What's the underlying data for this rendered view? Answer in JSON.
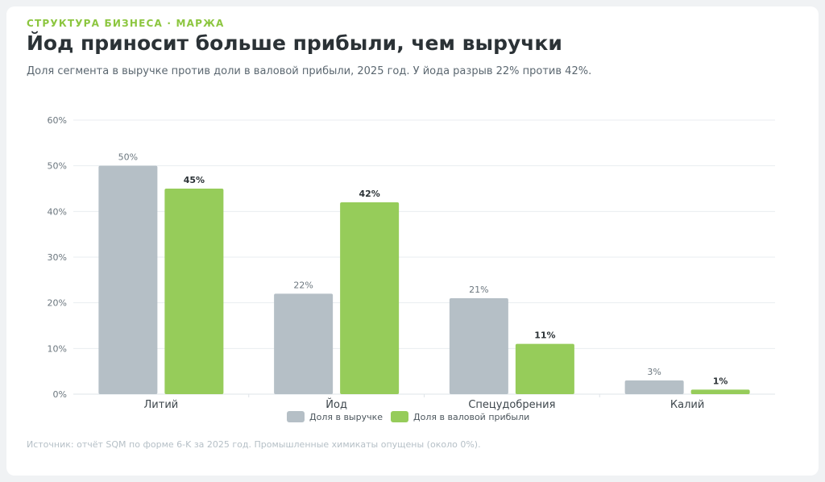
{
  "header": {
    "eyebrow": "СТРУКТУРА БИЗНЕСА · МАРЖА",
    "title": "Йод приносит больше прибыли, чем выручки",
    "subtitle": "Доля сегмента в выручке против доли в валовой прибыли, 2025 год. У йода разрыв 22% против 42%."
  },
  "chart_data": {
    "type": "bar",
    "categories": [
      "Литий",
      "Йод",
      "Спецудобрения",
      "Калий"
    ],
    "series": [
      {
        "name": "Доля в выручке",
        "values": [
          50,
          22,
          21,
          3
        ],
        "color": "#b5bfc6",
        "label_bold": false
      },
      {
        "name": "Доля в валовой прибыли",
        "values": [
          45,
          42,
          11,
          1
        ],
        "color": "#96cc5a",
        "label_bold": true
      }
    ],
    "value_suffix": "%",
    "ylim": [
      0,
      60
    ],
    "yticks": [
      0,
      10,
      20,
      30,
      40,
      50,
      60
    ],
    "ytick_labels": [
      "0%",
      "10%",
      "20%",
      "30%",
      "40%",
      "50%",
      "60%"
    ],
    "grid": true,
    "legend_position": "bottom-center"
  },
  "legend": {
    "items": [
      {
        "label": "Доля в выручке",
        "color": "#b5bfc6"
      },
      {
        "label": "Доля в валовой прибыли",
        "color": "#96cc5a"
      }
    ]
  },
  "footer": {
    "source": "Источник: отчёт SQM по форме 6-K за 2025 год. Промышленные химикаты опущены (около 0%)."
  }
}
